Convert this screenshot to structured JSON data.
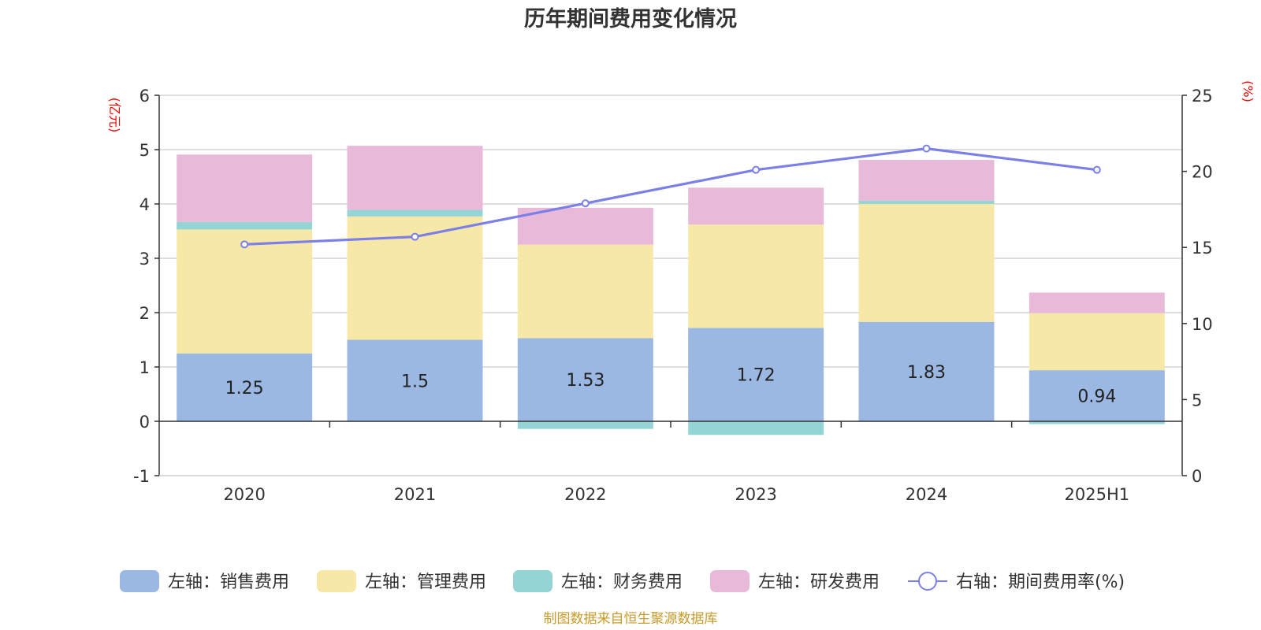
{
  "chart_data": {
    "type": "bar",
    "title": "历年期间费用变化情况",
    "categories": [
      "2020",
      "2021",
      "2022",
      "2023",
      "2024",
      "2025H1"
    ],
    "series": [
      {
        "name": "左轴：销售费用",
        "axis": "left",
        "type": "bar",
        "color": "#9bb8e3",
        "values": [
          1.25,
          1.5,
          1.53,
          1.72,
          1.83,
          0.94
        ],
        "data_labels": [
          "1.25",
          "1.5",
          "1.53",
          "1.72",
          "1.83",
          "0.94"
        ]
      },
      {
        "name": "左轴：管理费用",
        "axis": "left",
        "type": "bar",
        "color": "#f8e8a8",
        "values": [
          2.28,
          2.27,
          1.72,
          1.9,
          2.17,
          1.05
        ]
      },
      {
        "name": "左轴：财务费用",
        "axis": "left",
        "type": "bar",
        "color": "#95d4d4",
        "values": [
          0.14,
          0.12,
          -0.14,
          -0.25,
          0.06,
          -0.05
        ]
      },
      {
        "name": "左轴：研发费用",
        "axis": "left",
        "type": "bar",
        "color": "#e8b9d9",
        "values": [
          1.24,
          1.18,
          0.68,
          0.68,
          0.75,
          0.38
        ]
      },
      {
        "name": "右轴：期间费用率(%)",
        "axis": "right",
        "type": "line",
        "color": "#7b7fe8",
        "values": [
          15.2,
          15.7,
          17.9,
          20.1,
          21.5,
          20.1
        ]
      }
    ],
    "y_left": {
      "unit": "(亿元)",
      "min": -1,
      "max": 6,
      "ticks": [
        -1,
        0,
        1,
        2,
        3,
        4,
        5,
        6
      ]
    },
    "y_right": {
      "unit": "(%)",
      "min": 0,
      "max": 25,
      "ticks": [
        0,
        5,
        10,
        15,
        20,
        25
      ]
    },
    "grid": true,
    "legend_position": "bottom",
    "source": "制图数据来自恒生聚源数据库"
  }
}
